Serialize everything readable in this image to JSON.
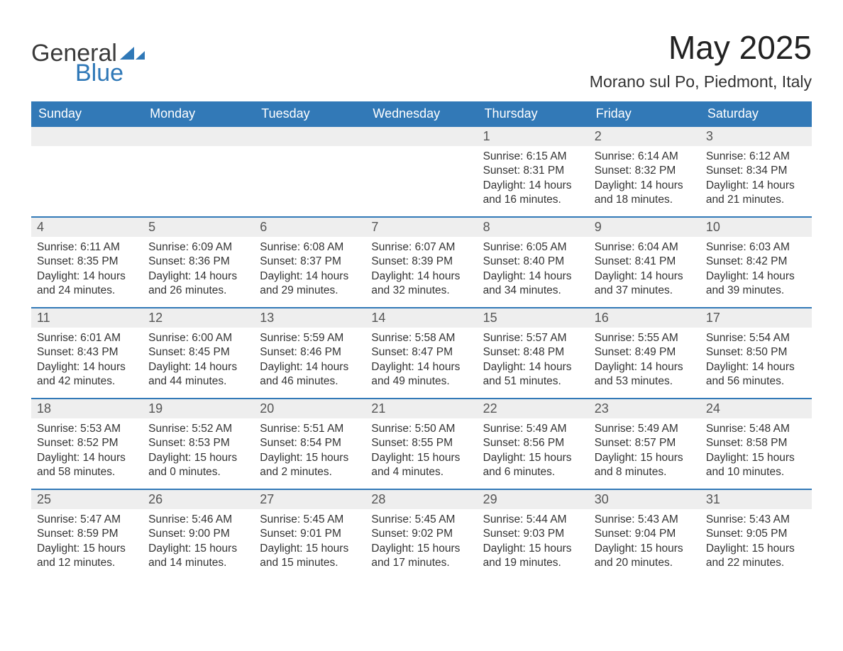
{
  "brand": {
    "word1": "General",
    "word2": "Blue",
    "word1_color": "#3a3a3a",
    "word2_color": "#2f78b7",
    "icon_color": "#2f78b7"
  },
  "title": "May 2025",
  "location": "Morano sul Po, Piedmont, Italy",
  "colors": {
    "header_bg": "#3279b7",
    "header_text": "#ffffff",
    "daynum_bg": "#eeeeee",
    "daynum_text": "#555555",
    "body_text": "#333333",
    "row_border": "#3279b7",
    "page_bg": "#ffffff"
  },
  "typography": {
    "title_fontsize": 46,
    "location_fontsize": 23,
    "weekday_fontsize": 18,
    "daynum_fontsize": 18,
    "body_fontsize": 15.5
  },
  "weekdays": [
    "Sunday",
    "Monday",
    "Tuesday",
    "Wednesday",
    "Thursday",
    "Friday",
    "Saturday"
  ],
  "weeks": [
    [
      {
        "n": "",
        "sunrise": "",
        "sunset": "",
        "daylight": ""
      },
      {
        "n": "",
        "sunrise": "",
        "sunset": "",
        "daylight": ""
      },
      {
        "n": "",
        "sunrise": "",
        "sunset": "",
        "daylight": ""
      },
      {
        "n": "",
        "sunrise": "",
        "sunset": "",
        "daylight": ""
      },
      {
        "n": "1",
        "sunrise": "Sunrise: 6:15 AM",
        "sunset": "Sunset: 8:31 PM",
        "daylight": "Daylight: 14 hours and 16 minutes."
      },
      {
        "n": "2",
        "sunrise": "Sunrise: 6:14 AM",
        "sunset": "Sunset: 8:32 PM",
        "daylight": "Daylight: 14 hours and 18 minutes."
      },
      {
        "n": "3",
        "sunrise": "Sunrise: 6:12 AM",
        "sunset": "Sunset: 8:34 PM",
        "daylight": "Daylight: 14 hours and 21 minutes."
      }
    ],
    [
      {
        "n": "4",
        "sunrise": "Sunrise: 6:11 AM",
        "sunset": "Sunset: 8:35 PM",
        "daylight": "Daylight: 14 hours and 24 minutes."
      },
      {
        "n": "5",
        "sunrise": "Sunrise: 6:09 AM",
        "sunset": "Sunset: 8:36 PM",
        "daylight": "Daylight: 14 hours and 26 minutes."
      },
      {
        "n": "6",
        "sunrise": "Sunrise: 6:08 AM",
        "sunset": "Sunset: 8:37 PM",
        "daylight": "Daylight: 14 hours and 29 minutes."
      },
      {
        "n": "7",
        "sunrise": "Sunrise: 6:07 AM",
        "sunset": "Sunset: 8:39 PM",
        "daylight": "Daylight: 14 hours and 32 minutes."
      },
      {
        "n": "8",
        "sunrise": "Sunrise: 6:05 AM",
        "sunset": "Sunset: 8:40 PM",
        "daylight": "Daylight: 14 hours and 34 minutes."
      },
      {
        "n": "9",
        "sunrise": "Sunrise: 6:04 AM",
        "sunset": "Sunset: 8:41 PM",
        "daylight": "Daylight: 14 hours and 37 minutes."
      },
      {
        "n": "10",
        "sunrise": "Sunrise: 6:03 AM",
        "sunset": "Sunset: 8:42 PM",
        "daylight": "Daylight: 14 hours and 39 minutes."
      }
    ],
    [
      {
        "n": "11",
        "sunrise": "Sunrise: 6:01 AM",
        "sunset": "Sunset: 8:43 PM",
        "daylight": "Daylight: 14 hours and 42 minutes."
      },
      {
        "n": "12",
        "sunrise": "Sunrise: 6:00 AM",
        "sunset": "Sunset: 8:45 PM",
        "daylight": "Daylight: 14 hours and 44 minutes."
      },
      {
        "n": "13",
        "sunrise": "Sunrise: 5:59 AM",
        "sunset": "Sunset: 8:46 PM",
        "daylight": "Daylight: 14 hours and 46 minutes."
      },
      {
        "n": "14",
        "sunrise": "Sunrise: 5:58 AM",
        "sunset": "Sunset: 8:47 PM",
        "daylight": "Daylight: 14 hours and 49 minutes."
      },
      {
        "n": "15",
        "sunrise": "Sunrise: 5:57 AM",
        "sunset": "Sunset: 8:48 PM",
        "daylight": "Daylight: 14 hours and 51 minutes."
      },
      {
        "n": "16",
        "sunrise": "Sunrise: 5:55 AM",
        "sunset": "Sunset: 8:49 PM",
        "daylight": "Daylight: 14 hours and 53 minutes."
      },
      {
        "n": "17",
        "sunrise": "Sunrise: 5:54 AM",
        "sunset": "Sunset: 8:50 PM",
        "daylight": "Daylight: 14 hours and 56 minutes."
      }
    ],
    [
      {
        "n": "18",
        "sunrise": "Sunrise: 5:53 AM",
        "sunset": "Sunset: 8:52 PM",
        "daylight": "Daylight: 14 hours and 58 minutes."
      },
      {
        "n": "19",
        "sunrise": "Sunrise: 5:52 AM",
        "sunset": "Sunset: 8:53 PM",
        "daylight": "Daylight: 15 hours and 0 minutes."
      },
      {
        "n": "20",
        "sunrise": "Sunrise: 5:51 AM",
        "sunset": "Sunset: 8:54 PM",
        "daylight": "Daylight: 15 hours and 2 minutes."
      },
      {
        "n": "21",
        "sunrise": "Sunrise: 5:50 AM",
        "sunset": "Sunset: 8:55 PM",
        "daylight": "Daylight: 15 hours and 4 minutes."
      },
      {
        "n": "22",
        "sunrise": "Sunrise: 5:49 AM",
        "sunset": "Sunset: 8:56 PM",
        "daylight": "Daylight: 15 hours and 6 minutes."
      },
      {
        "n": "23",
        "sunrise": "Sunrise: 5:49 AM",
        "sunset": "Sunset: 8:57 PM",
        "daylight": "Daylight: 15 hours and 8 minutes."
      },
      {
        "n": "24",
        "sunrise": "Sunrise: 5:48 AM",
        "sunset": "Sunset: 8:58 PM",
        "daylight": "Daylight: 15 hours and 10 minutes."
      }
    ],
    [
      {
        "n": "25",
        "sunrise": "Sunrise: 5:47 AM",
        "sunset": "Sunset: 8:59 PM",
        "daylight": "Daylight: 15 hours and 12 minutes."
      },
      {
        "n": "26",
        "sunrise": "Sunrise: 5:46 AM",
        "sunset": "Sunset: 9:00 PM",
        "daylight": "Daylight: 15 hours and 14 minutes."
      },
      {
        "n": "27",
        "sunrise": "Sunrise: 5:45 AM",
        "sunset": "Sunset: 9:01 PM",
        "daylight": "Daylight: 15 hours and 15 minutes."
      },
      {
        "n": "28",
        "sunrise": "Sunrise: 5:45 AM",
        "sunset": "Sunset: 9:02 PM",
        "daylight": "Daylight: 15 hours and 17 minutes."
      },
      {
        "n": "29",
        "sunrise": "Sunrise: 5:44 AM",
        "sunset": "Sunset: 9:03 PM",
        "daylight": "Daylight: 15 hours and 19 minutes."
      },
      {
        "n": "30",
        "sunrise": "Sunrise: 5:43 AM",
        "sunset": "Sunset: 9:04 PM",
        "daylight": "Daylight: 15 hours and 20 minutes."
      },
      {
        "n": "31",
        "sunrise": "Sunrise: 5:43 AM",
        "sunset": "Sunset: 9:05 PM",
        "daylight": "Daylight: 15 hours and 22 minutes."
      }
    ]
  ]
}
